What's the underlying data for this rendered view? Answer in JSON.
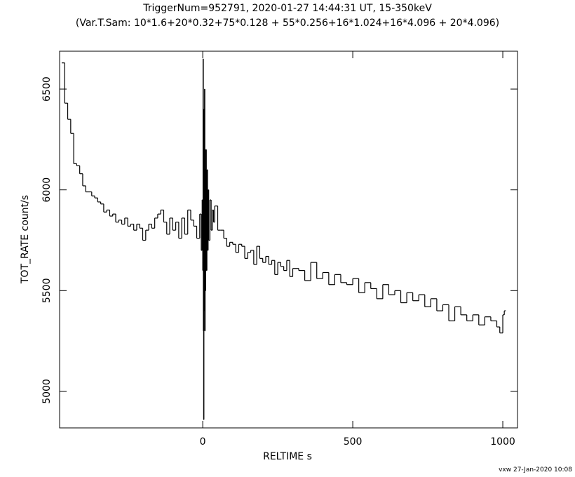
{
  "chart_data": {
    "type": "step",
    "title": "TriggerNum=952791, 2020-01-27 14:44:31 UT, 15-350keV",
    "subtitle": "(Var.T.Sam: 10*1.6+20*0.32+75*0.128  +  55*0.256+16*1.024+16*4.096  +  20*4.096)",
    "x_label": "RELTIME  s",
    "y_label": "TOT_RATE   count/s",
    "footer": "vxw 27-Jan-2020 10:08",
    "color": "#000000",
    "xlim": [
      -477,
      1049
    ],
    "xticks": [
      0,
      500,
      1000
    ],
    "ylim": [
      4819,
      6688
    ],
    "yticks": [
      5000,
      5500,
      6000,
      6500
    ],
    "x": [
      -470,
      -460,
      -450,
      -440,
      -430,
      -420,
      -410,
      -400,
      -390,
      -380,
      -370,
      -360,
      -350,
      -340,
      -330,
      -320,
      -310,
      -300,
      -290,
      -280,
      -270,
      -260,
      -250,
      -240,
      -230,
      -220,
      -210,
      -200,
      -190,
      -180,
      -170,
      -160,
      -150,
      -140,
      -130,
      -120,
      -110,
      -100,
      -90,
      -80,
      -70,
      -60,
      -50,
      -40,
      -30,
      -20,
      -10,
      -5,
      -2,
      0,
      1,
      2,
      3,
      4,
      5,
      6,
      7,
      8,
      9,
      10,
      12,
      14,
      16,
      18,
      20,
      24,
      28,
      32,
      36,
      40,
      50,
      60,
      70,
      80,
      90,
      100,
      110,
      120,
      130,
      140,
      150,
      160,
      170,
      180,
      190,
      200,
      210,
      220,
      230,
      240,
      250,
      260,
      270,
      280,
      290,
      300,
      320,
      340,
      360,
      380,
      400,
      420,
      440,
      460,
      480,
      500,
      520,
      540,
      560,
      580,
      600,
      620,
      640,
      660,
      680,
      700,
      720,
      740,
      760,
      780,
      800,
      820,
      840,
      860,
      880,
      900,
      920,
      940,
      960,
      980,
      990,
      1000,
      1005
    ],
    "values": [
      6630,
      6430,
      6350,
      6280,
      6130,
      6120,
      6080,
      6020,
      5990,
      5990,
      5970,
      5960,
      5940,
      5930,
      5890,
      5900,
      5870,
      5880,
      5840,
      5850,
      5830,
      5860,
      5820,
      5830,
      5800,
      5830,
      5810,
      5750,
      5800,
      5830,
      5810,
      5860,
      5880,
      5900,
      5840,
      5780,
      5860,
      5800,
      5840,
      5760,
      5860,
      5780,
      5900,
      5850,
      5820,
      5760,
      5880,
      5700,
      5950,
      5600,
      6650,
      5300,
      4860,
      6400,
      5400,
      6500,
      5300,
      6100,
      5500,
      6200,
      5600,
      6100,
      5700,
      6000,
      5750,
      5950,
      5800,
      5900,
      5840,
      5920,
      5800,
      5800,
      5760,
      5720,
      5740,
      5730,
      5690,
      5730,
      5720,
      5660,
      5690,
      5700,
      5630,
      5720,
      5660,
      5640,
      5670,
      5630,
      5650,
      5580,
      5640,
      5620,
      5600,
      5650,
      5570,
      5610,
      5600,
      5550,
      5640,
      5560,
      5590,
      5530,
      5580,
      5540,
      5530,
      5560,
      5490,
      5540,
      5510,
      5460,
      5530,
      5480,
      5500,
      5440,
      5490,
      5450,
      5480,
      5420,
      5460,
      5400,
      5430,
      5350,
      5420,
      5380,
      5350,
      5380,
      5330,
      5370,
      5350,
      5320,
      5290,
      5380,
      5400
    ]
  }
}
